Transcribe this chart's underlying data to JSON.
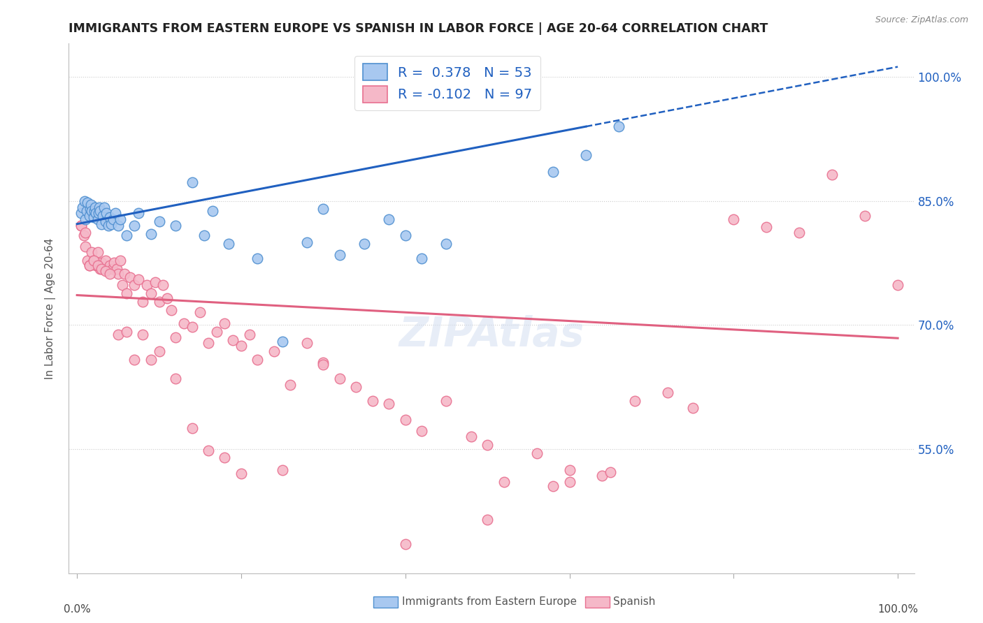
{
  "title": "IMMIGRANTS FROM EASTERN EUROPE VS SPANISH IN LABOR FORCE | AGE 20-64 CORRELATION CHART",
  "source": "Source: ZipAtlas.com",
  "ylabel": "In Labor Force | Age 20-64",
  "legend_label1": "Immigrants from Eastern Europe",
  "legend_label2": "Spanish",
  "r1": 0.378,
  "n1": 53,
  "r2": -0.102,
  "n2": 97,
  "color_blue_fill": "#A8C8F0",
  "color_pink_fill": "#F5B8C8",
  "color_blue_edge": "#5090D0",
  "color_pink_edge": "#E87090",
  "color_blue_line": "#2060C0",
  "color_pink_line": "#E06080",
  "color_blue_text": "#2060C0",
  "ytick_labels": [
    "55.0%",
    "70.0%",
    "85.0%",
    "100.0%"
  ],
  "ytick_values": [
    0.55,
    0.7,
    0.85,
    1.0
  ],
  "ylim_min": 0.4,
  "ylim_max": 1.04,
  "xlim_min": -0.01,
  "xlim_max": 1.02,
  "blue_points_x": [
    0.005,
    0.007,
    0.009,
    0.01,
    0.012,
    0.013,
    0.015,
    0.016,
    0.017,
    0.018,
    0.02,
    0.021,
    0.022,
    0.023,
    0.025,
    0.026,
    0.027,
    0.028,
    0.03,
    0.031,
    0.033,
    0.035,
    0.036,
    0.038,
    0.04,
    0.042,
    0.044,
    0.047,
    0.05,
    0.053,
    0.06,
    0.07,
    0.075,
    0.09,
    0.1,
    0.12,
    0.14,
    0.155,
    0.165,
    0.185,
    0.22,
    0.25,
    0.28,
    0.3,
    0.32,
    0.35,
    0.38,
    0.4,
    0.42,
    0.45,
    0.58,
    0.62,
    0.66
  ],
  "blue_points_y": [
    0.835,
    0.842,
    0.85,
    0.828,
    0.838,
    0.848,
    0.832,
    0.84,
    0.845,
    0.838,
    0.83,
    0.838,
    0.842,
    0.835,
    0.828,
    0.835,
    0.842,
    0.838,
    0.822,
    0.832,
    0.842,
    0.825,
    0.835,
    0.82,
    0.83,
    0.822,
    0.828,
    0.835,
    0.82,
    0.828,
    0.808,
    0.82,
    0.835,
    0.81,
    0.825,
    0.82,
    0.872,
    0.808,
    0.838,
    0.798,
    0.78,
    0.68,
    0.8,
    0.84,
    0.785,
    0.798,
    0.828,
    0.808,
    0.78,
    0.798,
    0.885,
    0.905,
    0.94
  ],
  "pink_points_x": [
    0.005,
    0.008,
    0.01,
    0.013,
    0.015,
    0.018,
    0.02,
    0.023,
    0.025,
    0.028,
    0.03,
    0.033,
    0.035,
    0.038,
    0.04,
    0.043,
    0.045,
    0.048,
    0.05,
    0.053,
    0.055,
    0.058,
    0.06,
    0.065,
    0.07,
    0.075,
    0.08,
    0.085,
    0.09,
    0.095,
    0.1,
    0.105,
    0.11,
    0.115,
    0.12,
    0.13,
    0.14,
    0.15,
    0.16,
    0.17,
    0.18,
    0.19,
    0.2,
    0.21,
    0.22,
    0.24,
    0.26,
    0.28,
    0.3,
    0.32,
    0.34,
    0.36,
    0.38,
    0.4,
    0.42,
    0.45,
    0.48,
    0.5,
    0.52,
    0.56,
    0.58,
    0.6,
    0.64,
    0.68,
    0.72,
    0.75,
    0.8,
    0.84,
    0.88,
    0.92,
    0.96,
    1.0,
    0.005,
    0.01,
    0.015,
    0.02,
    0.025,
    0.03,
    0.035,
    0.04,
    0.05,
    0.06,
    0.07,
    0.08,
    0.09,
    0.1,
    0.12,
    0.14,
    0.16,
    0.18,
    0.2,
    0.25,
    0.3,
    0.4,
    0.5,
    0.6,
    0.65
  ],
  "pink_points_y": [
    0.82,
    0.808,
    0.795,
    0.778,
    0.772,
    0.788,
    0.778,
    0.772,
    0.788,
    0.768,
    0.775,
    0.768,
    0.778,
    0.768,
    0.772,
    0.768,
    0.775,
    0.768,
    0.762,
    0.778,
    0.748,
    0.762,
    0.738,
    0.758,
    0.748,
    0.755,
    0.728,
    0.748,
    0.738,
    0.752,
    0.728,
    0.748,
    0.732,
    0.718,
    0.685,
    0.702,
    0.698,
    0.715,
    0.678,
    0.692,
    0.702,
    0.682,
    0.675,
    0.688,
    0.658,
    0.668,
    0.628,
    0.678,
    0.655,
    0.635,
    0.625,
    0.608,
    0.605,
    0.585,
    0.572,
    0.608,
    0.565,
    0.555,
    0.51,
    0.545,
    0.505,
    0.525,
    0.518,
    0.608,
    0.618,
    0.6,
    0.828,
    0.818,
    0.812,
    0.882,
    0.832,
    0.748,
    0.82,
    0.812,
    0.772,
    0.778,
    0.772,
    0.768,
    0.765,
    0.762,
    0.688,
    0.692,
    0.658,
    0.688,
    0.658,
    0.668,
    0.635,
    0.575,
    0.548,
    0.54,
    0.52,
    0.525,
    0.652,
    0.435,
    0.465,
    0.51,
    0.522
  ]
}
